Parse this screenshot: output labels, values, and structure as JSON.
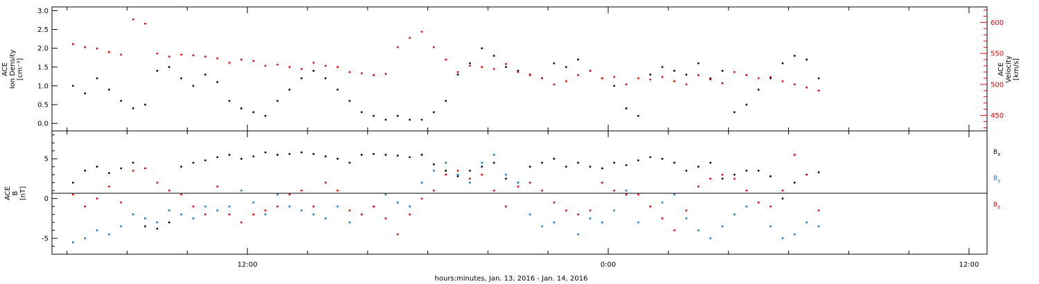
{
  "chart_data": [
    {
      "type": "scatter",
      "ylabel": "ACE\nIon Density\n[cm⁻³]",
      "ylim": [
        -0.2,
        3.1
      ],
      "yticks": [
        0.0,
        0.5,
        1.0,
        1.5,
        2.0,
        2.5,
        3.0
      ],
      "y2label": "ACE\nVelocity\n[km/s]",
      "y2lim": [
        425,
        625
      ],
      "y2ticks": [
        450,
        500,
        550,
        600
      ],
      "series": [
        {
          "color": "#000000",
          "axis": "left",
          "x": [
            6.2,
            6.6,
            7.0,
            7.4,
            7.8,
            8.2,
            8.6,
            9.0,
            9.4,
            9.8,
            10.2,
            10.6,
            11.0,
            11.4,
            11.8,
            12.2,
            12.6,
            13.0,
            13.4,
            13.8,
            14.2,
            14.6,
            15.0,
            15.4,
            15.8,
            16.2,
            16.6,
            17.0,
            17.4,
            17.8,
            18.2,
            18.6,
            19.0,
            19.4,
            19.8,
            20.2,
            20.6,
            21.0,
            21.4,
            21.8,
            22.2,
            22.6,
            23.0,
            23.4,
            23.8,
            24.2,
            24.6,
            25.0,
            25.4,
            25.8,
            26.2,
            26.6,
            27.0,
            27.4,
            27.8,
            28.2,
            28.6,
            29.0,
            29.4,
            29.8,
            30.2,
            30.6,
            31.0
          ],
          "y": [
            1.0,
            0.8,
            1.2,
            0.9,
            0.6,
            0.4,
            0.5,
            1.4,
            1.5,
            1.2,
            1.0,
            1.3,
            1.1,
            0.6,
            0.4,
            0.3,
            0.2,
            0.6,
            0.9,
            1.2,
            1.4,
            1.2,
            0.9,
            0.6,
            0.3,
            0.2,
            0.1,
            0.2,
            0.1,
            0.1,
            0.3,
            0.6,
            1.3,
            1.6,
            2.0,
            1.8,
            1.5,
            1.4,
            1.3,
            1.2,
            1.6,
            1.5,
            1.7,
            1.4,
            1.2,
            1.0,
            0.4,
            0.2,
            1.3,
            1.5,
            1.4,
            1.3,
            1.6,
            1.2,
            1.4,
            0.3,
            0.5,
            0.9,
            1.2,
            1.6,
            1.8,
            1.7,
            1.2
          ]
        },
        {
          "color": "#e00000",
          "axis": "right",
          "x": [
            6.2,
            6.6,
            7.0,
            7.4,
            7.8,
            8.2,
            8.6,
            9.0,
            9.4,
            9.8,
            10.2,
            10.6,
            11.0,
            11.4,
            11.8,
            12.2,
            12.6,
            13.0,
            13.4,
            13.8,
            14.2,
            14.6,
            15.0,
            15.4,
            15.8,
            16.2,
            16.6,
            17.0,
            17.4,
            17.8,
            18.2,
            18.6,
            19.0,
            19.4,
            19.8,
            20.2,
            20.6,
            21.0,
            21.4,
            21.8,
            22.2,
            22.6,
            23.0,
            23.4,
            23.8,
            24.2,
            24.6,
            25.0,
            25.4,
            25.8,
            26.2,
            26.6,
            27.0,
            27.4,
            27.8,
            28.2,
            28.6,
            29.0,
            29.4,
            29.8,
            30.2,
            30.6,
            31.0
          ],
          "y": [
            565,
            560,
            558,
            552,
            548,
            605,
            598,
            550,
            545,
            548,
            547,
            545,
            542,
            535,
            540,
            538,
            530,
            532,
            528,
            525,
            535,
            530,
            528,
            520,
            518,
            515,
            517,
            560,
            575,
            585,
            560,
            540,
            520,
            530,
            528,
            525,
            533,
            520,
            515,
            510,
            500,
            505,
            515,
            522,
            510,
            512,
            500,
            510,
            508,
            512,
            505,
            500,
            515,
            508,
            502,
            520,
            515,
            510,
            512,
            505,
            500,
            495,
            490
          ]
        }
      ]
    },
    {
      "type": "scatter",
      "ylabel": "ACE\nB\n[nT]",
      "ylim": [
        -7,
        8.5
      ],
      "yticks": [
        -5,
        0,
        5
      ],
      "legend_placement": "right",
      "series": [
        {
          "name": "Bx",
          "name_main": "B",
          "name_sub": "x",
          "color": "#000000",
          "x": [
            6.2,
            6.6,
            7.0,
            7.4,
            7.8,
            8.2,
            8.6,
            9.0,
            9.4,
            9.8,
            10.2,
            10.6,
            11.0,
            11.4,
            11.8,
            12.2,
            12.6,
            13.0,
            13.4,
            13.8,
            14.2,
            14.6,
            15.0,
            15.4,
            15.8,
            16.2,
            16.6,
            17.0,
            17.4,
            17.8,
            18.2,
            18.6,
            19.0,
            19.4,
            19.8,
            20.2,
            20.6,
            21.0,
            21.4,
            21.8,
            22.2,
            22.6,
            23.0,
            23.4,
            23.8,
            24.2,
            24.6,
            25.0,
            25.4,
            25.8,
            26.2,
            26.6,
            27.0,
            27.4,
            27.8,
            28.2,
            28.6,
            29.0,
            29.4,
            29.8,
            30.2,
            30.6,
            31.0
          ],
          "y": [
            2.0,
            3.5,
            4.0,
            3.2,
            3.8,
            4.5,
            -3.5,
            -3.8,
            -3.0,
            4.0,
            4.5,
            4.8,
            5.2,
            5.5,
            5.0,
            5.3,
            5.8,
            5.5,
            5.6,
            5.8,
            5.6,
            5.3,
            5.0,
            4.5,
            5.5,
            5.6,
            5.5,
            5.4,
            5.2,
            5.5,
            4.3,
            3.5,
            2.8,
            3.5,
            4.0,
            4.5,
            2.5,
            2.0,
            4.0,
            4.5,
            5.0,
            4.0,
            4.5,
            4.0,
            3.8,
            4.5,
            4.2,
            4.8,
            5.2,
            5.0,
            4.5,
            3.5,
            4.0,
            4.5,
            2.5,
            3.0,
            3.5,
            3.5,
            2.8,
            0.0,
            2.0,
            3.0,
            3.3
          ]
        },
        {
          "name": "By",
          "name_main": "B",
          "name_sub": "y",
          "color": "#0a78d8",
          "x": [
            6.2,
            6.6,
            7.0,
            7.4,
            7.8,
            8.2,
            8.6,
            9.0,
            9.4,
            9.8,
            10.2,
            10.6,
            11.0,
            11.4,
            11.8,
            12.2,
            12.6,
            13.0,
            13.4,
            13.8,
            14.2,
            14.6,
            15.0,
            15.4,
            15.8,
            16.2,
            16.6,
            17.0,
            17.4,
            17.8,
            18.2,
            18.6,
            19.0,
            19.4,
            19.8,
            20.2,
            20.6,
            21.0,
            21.4,
            21.8,
            22.2,
            22.6,
            23.0,
            23.4,
            23.8,
            24.2,
            24.6,
            25.0,
            25.4,
            25.8,
            26.2,
            26.6,
            27.0,
            27.4,
            27.8,
            28.2,
            28.6,
            29.0,
            29.4,
            29.8,
            30.2,
            30.6,
            31.0
          ],
          "y": [
            -5.5,
            -5.0,
            -4.0,
            -4.5,
            -3.5,
            -2.0,
            -2.5,
            -3.0,
            -1.5,
            -2.0,
            -2.5,
            -1.0,
            -1.5,
            -1.0,
            1.0,
            -0.5,
            -2.0,
            0.5,
            -1.0,
            -1.5,
            -2.0,
            -2.5,
            -1.0,
            -3.0,
            -2.0,
            -1.0,
            0.5,
            -0.5,
            -1.0,
            2.0,
            3.5,
            4.5,
            3.0,
            2.0,
            4.5,
            5.5,
            3.0,
            2.0,
            -2.0,
            -3.5,
            -3.0,
            -1.5,
            -4.5,
            -2.5,
            -3.0,
            -1.5,
            1.0,
            -3.0,
            -1.0,
            -0.5,
            0.5,
            -2.5,
            -4.0,
            -5.0,
            -3.5,
            -2.0,
            -1.0,
            -0.5,
            -3.5,
            -5.0,
            -4.5,
            -3.0,
            -3.5
          ]
        },
        {
          "name": "Bz",
          "name_main": "B",
          "name_sub": "z",
          "color": "#e00000",
          "x": [
            6.2,
            6.6,
            7.0,
            7.4,
            7.8,
            8.2,
            8.6,
            9.0,
            9.4,
            9.8,
            10.2,
            10.6,
            11.0,
            11.4,
            11.8,
            12.2,
            12.6,
            13.0,
            13.4,
            13.8,
            14.2,
            14.6,
            15.0,
            15.4,
            15.8,
            16.2,
            16.6,
            17.0,
            17.4,
            17.8,
            18.2,
            18.6,
            19.0,
            19.4,
            19.8,
            20.2,
            20.6,
            21.0,
            21.4,
            21.8,
            22.2,
            22.6,
            23.0,
            23.4,
            23.8,
            24.2,
            24.6,
            25.0,
            25.4,
            25.8,
            26.2,
            26.6,
            27.0,
            27.4,
            27.8,
            28.2,
            28.6,
            29.0,
            29.4,
            29.8,
            30.2,
            30.6,
            31.0
          ],
          "y": [
            0.5,
            -1.0,
            0.0,
            1.5,
            -0.5,
            3.5,
            3.8,
            2.0,
            1.0,
            0.5,
            -1.0,
            -2.0,
            1.5,
            -2.0,
            -3.0,
            -2.0,
            -1.5,
            -1.0,
            0.5,
            1.0,
            -1.0,
            2.0,
            1.0,
            -1.5,
            -2.0,
            -1.0,
            -2.5,
            -4.5,
            -2.0,
            0.0,
            1.0,
            3.0,
            3.5,
            2.5,
            3.0,
            1.0,
            -1.0,
            1.5,
            2.0,
            1.0,
            -0.5,
            -1.5,
            -2.0,
            -1.5,
            2.0,
            1.0,
            0.5,
            0.5,
            -1.0,
            -2.5,
            -4.0,
            -1.5,
            1.5,
            2.5,
            3.0,
            2.5,
            1.0,
            -0.5,
            -1.0,
            1.0,
            5.5,
            3.0,
            -1.5
          ]
        }
      ]
    }
  ],
  "xaxis": {
    "label": "hours:minutes, Jan. 13, 2016 - Jan. 14, 2016",
    "xlim": [
      5.5,
      36.6
    ],
    "major_ticks": [
      12,
      24,
      36
    ],
    "tick_labels": [
      "12:00",
      "0:00",
      "12:00"
    ],
    "minor_step": 2
  },
  "colors": {
    "axis": "#000000",
    "density": "#000000",
    "velocity": "#e00000",
    "bx": "#000000",
    "by": "#0a78d8",
    "bz": "#e00000"
  }
}
